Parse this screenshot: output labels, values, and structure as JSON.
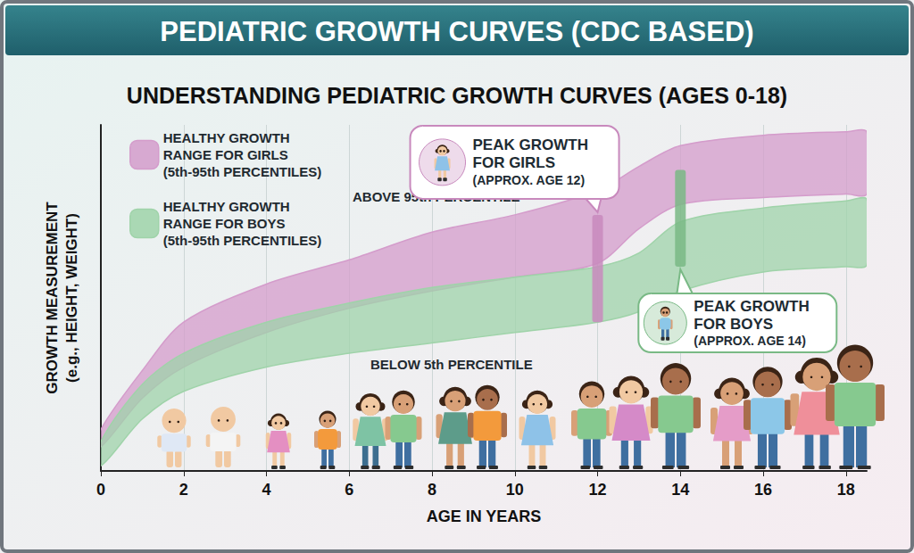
{
  "chart_data": {
    "type": "band",
    "title": "PEDIATRIC GROWTH CURVES (CDC BASED)",
    "subtitle": "UNDERSTANDING PEDIATRIC GROWTH CURVES (AGES 0-18)",
    "xlabel": "AGE IN YEARS",
    "ylabel": "GROWTH MEASUREMENT (e.g., HEIGHT, WEIGHT)",
    "x": [
      0,
      1,
      2,
      4,
      6,
      8,
      10,
      12,
      13,
      14,
      16,
      18,
      18.5
    ],
    "series": [
      {
        "name": "HEALTHY GROWTH RANGE FOR GIRLS (5th-95th PERCENTILES)",
        "color": "#d49ccb",
        "lower": [
          7,
          21,
          30,
          40,
          47,
          52,
          56,
          60,
          70,
          77,
          79,
          80,
          80
        ],
        "upper": [
          12,
          29,
          43,
          54,
          61,
          69,
          74,
          81,
          88,
          94,
          97,
          98,
          98
        ]
      },
      {
        "name": "HEALTHY GROWTH RANGE FOR BOYS (5th-95th PERCENTILES)",
        "color": "#9fd3a9",
        "lower": [
          1.5,
          15,
          23,
          30,
          34,
          37,
          40,
          43,
          46,
          52,
          57.5,
          59,
          59.5
        ],
        "upper": [
          8.5,
          25,
          34,
          43,
          48.5,
          53,
          56,
          59,
          63,
          72,
          76,
          78,
          78.5
        ]
      }
    ],
    "annotations": [
      {
        "text": "ABOVE 95th PERCENTILE"
      },
      {
        "text": "BELOW 5th PERCENTILE"
      }
    ],
    "peaks": [
      {
        "label": "PEAK GROWTH FOR GIRLS (APPROX. AGE 12)",
        "x": 12,
        "y_span": [
          43,
          74
        ],
        "color": "#c889bd"
      },
      {
        "label": "PEAK GROWTH FOR BOYS (APPROX. AGE 14)",
        "x": 14,
        "y_span": [
          59,
          87
        ],
        "color": "#79b985"
      }
    ],
    "xlim": [
      0,
      18.5
    ],
    "xticks": [
      0,
      2,
      4,
      6,
      8,
      10,
      12,
      14,
      16,
      18
    ],
    "ylim": [
      0,
      100
    ],
    "grid": "x",
    "legend": "upper left",
    "tick_labels": "x"
  }
}
